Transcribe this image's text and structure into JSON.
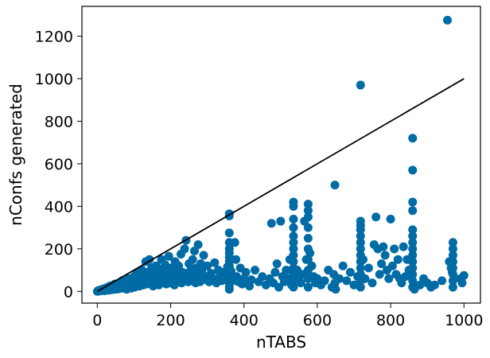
{
  "chart_data": {
    "type": "scatter",
    "xlabel": "nTABS",
    "ylabel": "nConfs generated",
    "xlim": [
      -42,
      1045
    ],
    "ylim": [
      -55,
      1340
    ],
    "x_ticks": [
      0,
      200,
      400,
      600,
      800,
      1000
    ],
    "y_ticks": [
      0,
      200,
      400,
      600,
      800,
      1000,
      1200
    ],
    "grid": false,
    "legend": null,
    "colors": {
      "points": "#006ba4",
      "line": "#000000",
      "axes": "#000000"
    },
    "series": [
      {
        "kind": "scatter",
        "points": [
          [
            0,
            0
          ],
          [
            2,
            3
          ],
          [
            4,
            1
          ],
          [
            6,
            6
          ],
          [
            8,
            2
          ],
          [
            10,
            8
          ],
          [
            12,
            4
          ],
          [
            14,
            10
          ],
          [
            16,
            5
          ],
          [
            18,
            12
          ],
          [
            20,
            3
          ],
          [
            22,
            15
          ],
          [
            24,
            7
          ],
          [
            26,
            18
          ],
          [
            28,
            9
          ],
          [
            30,
            20
          ],
          [
            32,
            6
          ],
          [
            34,
            25
          ],
          [
            36,
            11
          ],
          [
            38,
            14
          ],
          [
            40,
            8
          ],
          [
            42,
            28
          ],
          [
            45,
            16
          ],
          [
            48,
            35
          ],
          [
            50,
            10
          ],
          [
            52,
            22
          ],
          [
            55,
            30
          ],
          [
            58,
            12
          ],
          [
            60,
            40
          ],
          [
            62,
            18
          ],
          [
            65,
            26
          ],
          [
            68,
            50
          ],
          [
            70,
            15
          ],
          [
            72,
            35
          ],
          [
            75,
            20
          ],
          [
            78,
            45
          ],
          [
            80,
            10
          ],
          [
            82,
            30
          ],
          [
            85,
            60
          ],
          [
            88,
            25
          ],
          [
            90,
            40
          ],
          [
            92,
            15
          ],
          [
            95,
            55
          ],
          [
            98,
            30
          ],
          [
            100,
            70
          ],
          [
            102,
            20
          ],
          [
            105,
            45
          ],
          [
            108,
            85
          ],
          [
            110,
            35
          ],
          [
            112,
            55
          ],
          [
            115,
            25
          ],
          [
            118,
            65
          ],
          [
            120,
            40
          ],
          [
            122,
            100
          ],
          [
            125,
            30
          ],
          [
            128,
            75
          ],
          [
            130,
            50
          ],
          [
            132,
            140
          ],
          [
            135,
            35
          ],
          [
            138,
            90
          ],
          [
            140,
            60
          ],
          [
            142,
            150
          ],
          [
            145,
            45
          ],
          [
            148,
            110
          ],
          [
            150,
            70
          ],
          [
            152,
            25
          ],
          [
            155,
            95
          ],
          [
            158,
            55
          ],
          [
            160,
            120
          ],
          [
            162,
            40
          ],
          [
            165,
            80
          ],
          [
            168,
            30
          ],
          [
            170,
            105
          ],
          [
            172,
            60
          ],
          [
            175,
            150
          ],
          [
            178,
            45
          ],
          [
            180,
            90
          ],
          [
            182,
            70
          ],
          [
            185,
            125
          ],
          [
            188,
            35
          ],
          [
            190,
            85
          ],
          [
            192,
            55
          ],
          [
            195,
            165
          ],
          [
            198,
            40
          ],
          [
            200,
            75
          ],
          [
            202,
            110
          ],
          [
            205,
            50
          ],
          [
            208,
            95
          ],
          [
            210,
            30
          ],
          [
            212,
            140
          ],
          [
            215,
            65
          ],
          [
            218,
            80
          ],
          [
            220,
            45
          ],
          [
            222,
            120
          ],
          [
            225,
            60
          ],
          [
            228,
            175
          ],
          [
            230,
            40
          ],
          [
            232,
            90
          ],
          [
            235,
            70
          ],
          [
            238,
            200
          ],
          [
            240,
            55
          ],
          [
            242,
            240
          ],
          [
            245,
            85
          ],
          [
            248,
            45
          ],
          [
            250,
            130
          ],
          [
            252,
            65
          ],
          [
            255,
            100
          ],
          [
            258,
            50
          ],
          [
            260,
            150
          ],
          [
            262,
            75
          ],
          [
            265,
            190
          ],
          [
            268,
            40
          ],
          [
            270,
            110
          ],
          [
            272,
            60
          ],
          [
            275,
            220
          ],
          [
            278,
            85
          ],
          [
            280,
            45
          ],
          [
            282,
            130
          ],
          [
            285,
            95
          ],
          [
            288,
            55
          ],
          [
            290,
            170
          ],
          [
            295,
            70
          ],
          [
            300,
            120
          ],
          [
            305,
            45
          ],
          [
            310,
            85
          ],
          [
            315,
            60
          ],
          [
            320,
            135
          ],
          [
            325,
            40
          ],
          [
            330,
            100
          ],
          [
            335,
            75
          ],
          [
            340,
            50
          ],
          [
            345,
            90
          ],
          [
            350,
            65
          ],
          [
            355,
            115
          ],
          [
            360,
            365
          ],
          [
            360,
            355
          ],
          [
            360,
            275
          ],
          [
            360,
            230
          ],
          [
            360,
            200
          ],
          [
            360,
            180
          ],
          [
            360,
            160
          ],
          [
            360,
            140
          ],
          [
            360,
            120
          ],
          [
            360,
            100
          ],
          [
            360,
            80
          ],
          [
            360,
            60
          ],
          [
            360,
            40
          ],
          [
            360,
            20
          ],
          [
            360,
            10
          ],
          [
            365,
            95
          ],
          [
            370,
            50
          ],
          [
            375,
            230
          ],
          [
            378,
            150
          ],
          [
            380,
            70
          ],
          [
            385,
            45
          ],
          [
            390,
            110
          ],
          [
            395,
            35
          ],
          [
            400,
            60
          ],
          [
            405,
            90
          ],
          [
            410,
            40
          ],
          [
            415,
            25
          ],
          [
            420,
            55
          ],
          [
            430,
            100
          ],
          [
            440,
            45
          ],
          [
            450,
            70
          ],
          [
            460,
            30
          ],
          [
            470,
            60
          ],
          [
            475,
            320
          ],
          [
            480,
            40
          ],
          [
            485,
            90
          ],
          [
            490,
            130
          ],
          [
            495,
            20
          ],
          [
            500,
            330
          ],
          [
            505,
            70
          ],
          [
            510,
            45
          ],
          [
            515,
            100
          ],
          [
            520,
            60
          ],
          [
            525,
            150
          ],
          [
            530,
            30
          ],
          [
            535,
            420
          ],
          [
            535,
            400
          ],
          [
            535,
            340
          ],
          [
            535,
            300
          ],
          [
            535,
            260
          ],
          [
            535,
            230
          ],
          [
            535,
            200
          ],
          [
            535,
            170
          ],
          [
            535,
            140
          ],
          [
            535,
            110
          ],
          [
            535,
            80
          ],
          [
            535,
            50
          ],
          [
            535,
            20
          ],
          [
            545,
            100
          ],
          [
            550,
            60
          ],
          [
            555,
            40
          ],
          [
            560,
            80
          ],
          [
            565,
            330
          ],
          [
            570,
            150
          ],
          [
            575,
            410
          ],
          [
            575,
            380
          ],
          [
            575,
            350
          ],
          [
            575,
            300
          ],
          [
            575,
            250
          ],
          [
            575,
            200
          ],
          [
            575,
            150
          ],
          [
            575,
            100
          ],
          [
            575,
            60
          ],
          [
            575,
            20
          ],
          [
            580,
            180
          ],
          [
            585,
            120
          ],
          [
            590,
            70
          ],
          [
            595,
            40
          ],
          [
            600,
            60
          ],
          [
            610,
            30
          ],
          [
            620,
            50
          ],
          [
            630,
            100
          ],
          [
            640,
            20
          ],
          [
            645,
            80
          ],
          [
            648,
            500
          ],
          [
            648,
            40
          ],
          [
            650,
            10
          ],
          [
            660,
            60
          ],
          [
            670,
            120
          ],
          [
            680,
            50
          ],
          [
            690,
            90
          ],
          [
            700,
            30
          ],
          [
            710,
            70
          ],
          [
            718,
            970
          ],
          [
            718,
            330
          ],
          [
            718,
            310
          ],
          [
            718,
            290
          ],
          [
            718,
            260
          ],
          [
            718,
            230
          ],
          [
            718,
            200
          ],
          [
            718,
            170
          ],
          [
            718,
            140
          ],
          [
            718,
            110
          ],
          [
            718,
            80
          ],
          [
            718,
            50
          ],
          [
            718,
            20
          ],
          [
            725,
            150
          ],
          [
            730,
            60
          ],
          [
            740,
            110
          ],
          [
            750,
            40
          ],
          [
            755,
            220
          ],
          [
            760,
            350
          ],
          [
            765,
            200
          ],
          [
            770,
            80
          ],
          [
            775,
            130
          ],
          [
            780,
            210
          ],
          [
            785,
            170
          ],
          [
            790,
            100
          ],
          [
            795,
            60
          ],
          [
            800,
            340
          ],
          [
            805,
            120
          ],
          [
            810,
            200
          ],
          [
            815,
            80
          ],
          [
            820,
            150
          ],
          [
            825,
            60
          ],
          [
            830,
            40
          ],
          [
            835,
            210
          ],
          [
            840,
            70
          ],
          [
            845,
            150
          ],
          [
            850,
            100
          ],
          [
            860,
            720
          ],
          [
            860,
            570
          ],
          [
            860,
            420
          ],
          [
            860,
            380
          ],
          [
            860,
            290
          ],
          [
            860,
            260
          ],
          [
            860,
            230
          ],
          [
            860,
            200
          ],
          [
            860,
            170
          ],
          [
            860,
            140
          ],
          [
            860,
            110
          ],
          [
            860,
            80
          ],
          [
            860,
            50
          ],
          [
            860,
            20
          ],
          [
            865,
            10
          ],
          [
            880,
            30
          ],
          [
            890,
            60
          ],
          [
            900,
            40
          ],
          [
            910,
            20
          ],
          [
            920,
            30
          ],
          [
            940,
            50
          ],
          [
            955,
            1275
          ],
          [
            960,
            140
          ],
          [
            965,
            110
          ],
          [
            968,
            90
          ],
          [
            970,
            230
          ],
          [
            970,
            200
          ],
          [
            970,
            170
          ],
          [
            970,
            140
          ],
          [
            970,
            110
          ],
          [
            970,
            80
          ],
          [
            970,
            50
          ],
          [
            970,
            20
          ],
          [
            990,
            60
          ],
          [
            995,
            40
          ],
          [
            1000,
            75
          ]
        ]
      },
      {
        "kind": "line",
        "points": [
          [
            0,
            0
          ],
          [
            1000,
            1000
          ]
        ]
      }
    ]
  }
}
